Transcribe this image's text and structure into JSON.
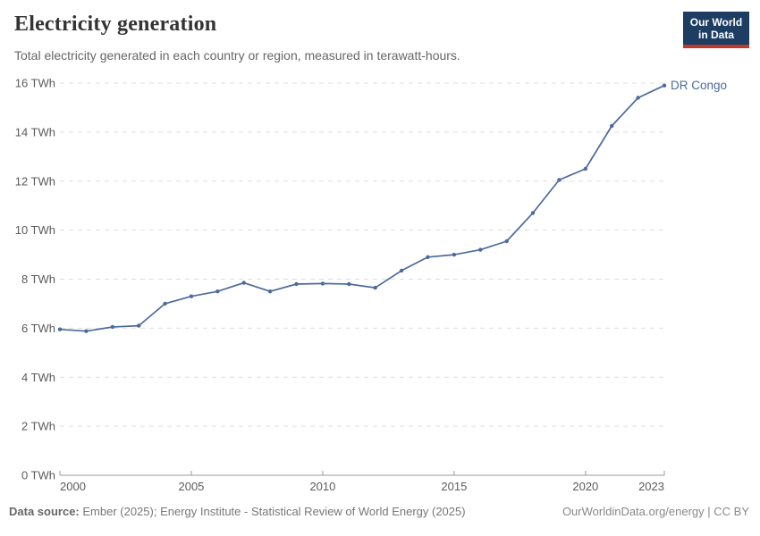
{
  "header": {
    "title": "Electricity generation",
    "subtitle": "Total electricity generated in each country or region, measured in terawatt-hours.",
    "logo": {
      "line1": "Our World",
      "line2": "in Data",
      "bg_color": "#1d3d63",
      "stripe_color": "#c0392b"
    }
  },
  "chart_data": {
    "type": "line",
    "title": "Electricity generation",
    "unit": "TWh",
    "x": [
      2000,
      2001,
      2002,
      2003,
      2004,
      2005,
      2006,
      2007,
      2008,
      2009,
      2010,
      2011,
      2012,
      2013,
      2014,
      2015,
      2016,
      2017,
      2018,
      2019,
      2020,
      2021,
      2022,
      2023
    ],
    "series": [
      {
        "name": "DR Congo",
        "color": "#4C6A9C",
        "values": [
          5.95,
          5.88,
          6.05,
          6.1,
          7.0,
          7.3,
          7.5,
          7.85,
          7.5,
          7.8,
          7.82,
          7.8,
          7.65,
          8.35,
          8.9,
          9.0,
          9.2,
          9.55,
          10.7,
          12.05,
          12.5,
          14.25,
          15.4,
          15.9
        ]
      }
    ],
    "ylim": [
      0,
      16
    ],
    "yticks": [
      0,
      2,
      4,
      6,
      8,
      10,
      12,
      14,
      16
    ],
    "ytick_format": "{v} TWh",
    "xlim": [
      2000,
      2023
    ],
    "xticks": [
      2000,
      2005,
      2010,
      2015,
      2020,
      2023
    ],
    "grid": "horizontal-dashed",
    "legend_position": "end-of-line",
    "entity_label": "DR Congo",
    "axis_color": "#999999",
    "gridline_color": "#dddddd",
    "tick_label_color": "#5b5b5b"
  },
  "footer": {
    "source_label": "Data source:",
    "source_text": " Ember (2025); Energy Institute - Statistical Review of World Energy (2025)",
    "link_text": "OurWorldinData.org/energy | CC BY"
  }
}
